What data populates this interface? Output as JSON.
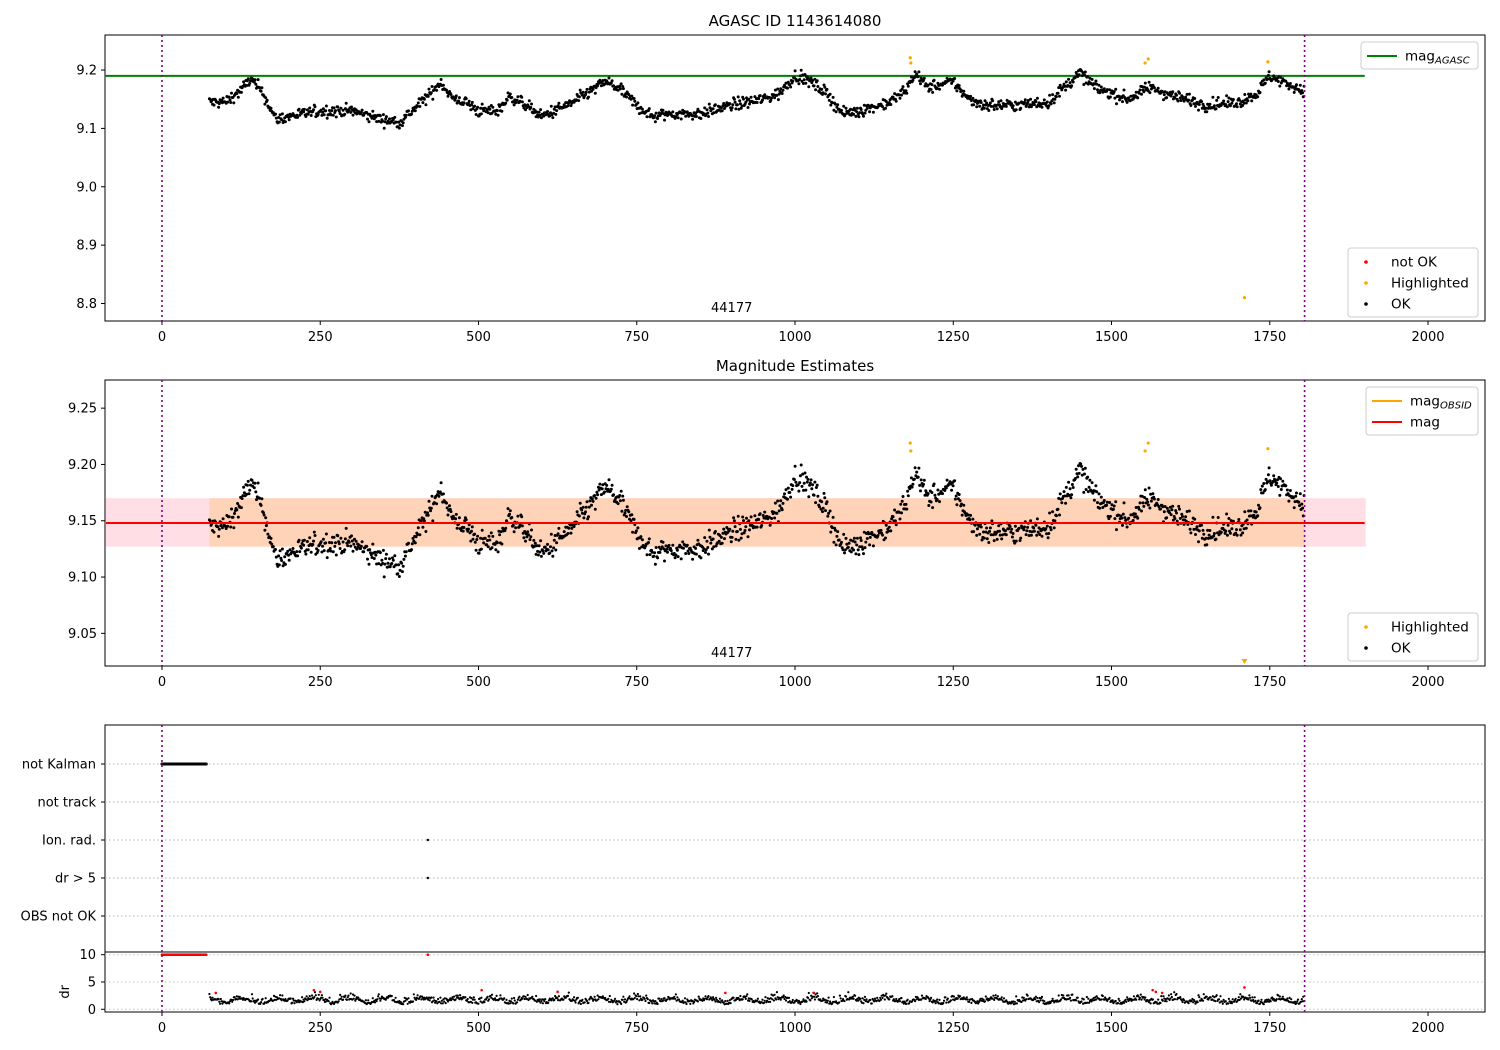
{
  "colors": {
    "ok": "#000000",
    "not_ok": "#ff0000",
    "highlighted": "#ffa500",
    "agasc_line": "#008000",
    "obsid_line": "#ffa500",
    "mag_line": "#ff0000",
    "band_obs": "#ffd3b8",
    "band_agasc": "#ffdfe5",
    "vline": "#800080"
  },
  "panels": [
    {
      "title": "AGASC ID 1143614080",
      "obsid_label": "44177"
    },
    {
      "title": "Magnitude Estimates",
      "obsid_label": "44177"
    },
    {
      "title": "",
      "obsid_label": ""
    }
  ],
  "chart_data": [
    {
      "type": "scatter",
      "title": "AGASC ID 1143614080",
      "xlim": [
        -90,
        2090
      ],
      "ylim": [
        8.77,
        9.26
      ],
      "xticks": [
        0,
        250,
        500,
        750,
        1000,
        1250,
        1500,
        1750,
        2000
      ],
      "yticks": [
        8.8,
        8.9,
        9.0,
        9.1,
        9.2
      ],
      "ytick_labels": [
        "8.8",
        "8.9",
        "9.0",
        "9.1",
        "9.2"
      ],
      "obs_bounds": [
        0,
        1805
      ],
      "annotation": "44177",
      "mag_agasc": 9.19,
      "mag_agasc_range": [
        -90,
        1900
      ],
      "legend_top": [
        {
          "label": "mag",
          "sub": "AGASC",
          "color": "#008000"
        }
      ],
      "legend_bottom": [
        {
          "label": "not OK",
          "color": "#ff0000"
        },
        {
          "label": "Highlighted",
          "color": "#ffa500"
        },
        {
          "label": "OK",
          "color": "#000000"
        }
      ],
      "series": [
        {
          "name": "OK",
          "trend": [
            [
              75,
              9.145
            ],
            [
              100,
              9.145
            ],
            [
              125,
              9.165
            ],
            [
              140,
              9.185
            ],
            [
              160,
              9.16
            ],
            [
              180,
              9.115
            ],
            [
              200,
              9.12
            ],
            [
              250,
              9.13
            ],
            [
              300,
              9.13
            ],
            [
              350,
              9.115
            ],
            [
              375,
              9.11
            ],
            [
              400,
              9.135
            ],
            [
              425,
              9.16
            ],
            [
              440,
              9.18
            ],
            [
              460,
              9.15
            ],
            [
              480,
              9.145
            ],
            [
              500,
              9.13
            ],
            [
              530,
              9.13
            ],
            [
              550,
              9.155
            ],
            [
              575,
              9.14
            ],
            [
              600,
              9.12
            ],
            [
              650,
              9.145
            ],
            [
              700,
              9.18
            ],
            [
              720,
              9.17
            ],
            [
              750,
              9.14
            ],
            [
              775,
              9.12
            ],
            [
              800,
              9.125
            ],
            [
              850,
              9.125
            ],
            [
              900,
              9.14
            ],
            [
              950,
              9.15
            ],
            [
              975,
              9.16
            ],
            [
              1000,
              9.19
            ],
            [
              1025,
              9.18
            ],
            [
              1050,
              9.16
            ],
            [
              1075,
              9.125
            ],
            [
              1100,
              9.13
            ],
            [
              1150,
              9.145
            ],
            [
              1175,
              9.165
            ],
            [
              1190,
              9.195
            ],
            [
              1210,
              9.17
            ],
            [
              1250,
              9.18
            ],
            [
              1275,
              9.15
            ],
            [
              1300,
              9.14
            ],
            [
              1350,
              9.14
            ],
            [
              1400,
              9.145
            ],
            [
              1450,
              9.195
            ],
            [
              1475,
              9.17
            ],
            [
              1500,
              9.16
            ],
            [
              1525,
              9.15
            ],
            [
              1560,
              9.17
            ],
            [
              1600,
              9.155
            ],
            [
              1650,
              9.14
            ],
            [
              1700,
              9.145
            ],
            [
              1730,
              9.16
            ],
            [
              1750,
              9.19
            ],
            [
              1780,
              9.175
            ],
            [
              1805,
              9.165
            ]
          ],
          "noise": 0.009
        },
        {
          "name": "Highlighted",
          "points": [
            [
              1182,
              9.221
            ],
            [
              1183,
              9.212
            ],
            [
              1553,
              9.212
            ],
            [
              1558,
              9.219
            ],
            [
              1710,
              8.81
            ],
            [
              1747,
              9.214
            ]
          ]
        },
        {
          "name": "not OK",
          "points": []
        }
      ]
    },
    {
      "type": "scatter",
      "title": "Magnitude Estimates",
      "xlim": [
        -90,
        2090
      ],
      "ylim": [
        9.021,
        9.275
      ],
      "xticks": [
        0,
        250,
        500,
        750,
        1000,
        1250,
        1500,
        1750,
        2000
      ],
      "yticks": [
        9.05,
        9.1,
        9.15,
        9.2,
        9.25
      ],
      "ytick_labels": [
        "9.05",
        "9.10",
        "9.15",
        "9.20",
        "9.25"
      ],
      "obs_bounds": [
        0,
        1805
      ],
      "annotation": "44177",
      "mag": 9.148,
      "mag_band": [
        9.127,
        9.17
      ],
      "mag_obsid": 9.148,
      "legend_top": [
        {
          "label": "mag",
          "sub": "OBSID",
          "color": "#ffa500"
        },
        {
          "label": "mag",
          "sub": "",
          "color": "#ff0000"
        }
      ],
      "legend_bottom": [
        {
          "label": "Highlighted",
          "color": "#ffa500"
        },
        {
          "label": "OK",
          "color": "#000000"
        }
      ],
      "series": [
        {
          "name": "OK",
          "trend": "same as panel 1"
        },
        {
          "name": "Highlighted",
          "points": [
            [
              1182,
              9.219
            ],
            [
              1183,
              9.212
            ],
            [
              1553,
              9.212
            ],
            [
              1558,
              9.219
            ],
            [
              1710,
              9.024
            ],
            [
              1747,
              9.214
            ]
          ]
        }
      ]
    },
    {
      "type": "scatter",
      "title": "",
      "xlim": [
        -90,
        2090
      ],
      "categories": [
        "not Kalman",
        "not track",
        "Ion. rad.",
        "dr > 5",
        "OBS not OK"
      ],
      "flag_points": {
        "not Kalman": [
          [
            0,
            70
          ]
        ],
        "not track": [],
        "Ion. rad.": [
          [
            420
          ]
        ],
        "dr > 5": [
          [
            420
          ]
        ],
        "OBS not OK": []
      },
      "dr": {
        "ylabel": "dr",
        "ylim": [
          -0.5,
          10.5
        ],
        "yticks": [
          0,
          5,
          10
        ],
        "capped_value": 10,
        "capped_range": [
          0,
          70
        ],
        "capped_extra": [
          420
        ],
        "red_points": [
          [
            85,
            3.0
          ],
          [
            240,
            3.5
          ],
          [
            250,
            3.2
          ],
          [
            420,
            10
          ],
          [
            505,
            3.5
          ],
          [
            625,
            3.2
          ],
          [
            890,
            3.0
          ],
          [
            1030,
            3.0
          ],
          [
            1565,
            3.5
          ],
          [
            1570,
            3.2
          ],
          [
            1580,
            3.0
          ],
          [
            1710,
            4.0
          ]
        ]
      },
      "xticks": [
        0,
        250,
        500,
        750,
        1000,
        1250,
        1500,
        1750,
        2000
      ],
      "obs_bounds": [
        0,
        1805
      ]
    }
  ]
}
